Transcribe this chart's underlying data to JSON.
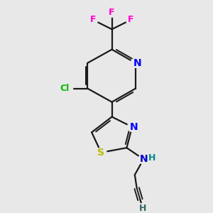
{
  "bg_color": "#e8e8e8",
  "bond_color": "#1a1a1a",
  "bond_width": 1.6,
  "figsize": [
    3.0,
    3.0
  ],
  "dpi": 100,
  "colors": {
    "N": "#0000ff",
    "Cl": "#00bb00",
    "F": "#ff00cc",
    "S": "#bbbb00",
    "NH_N": "#0000cc",
    "NH_H": "#008888",
    "alkyne_C": "#1a1a1a",
    "alkyne_H": "#336666"
  }
}
